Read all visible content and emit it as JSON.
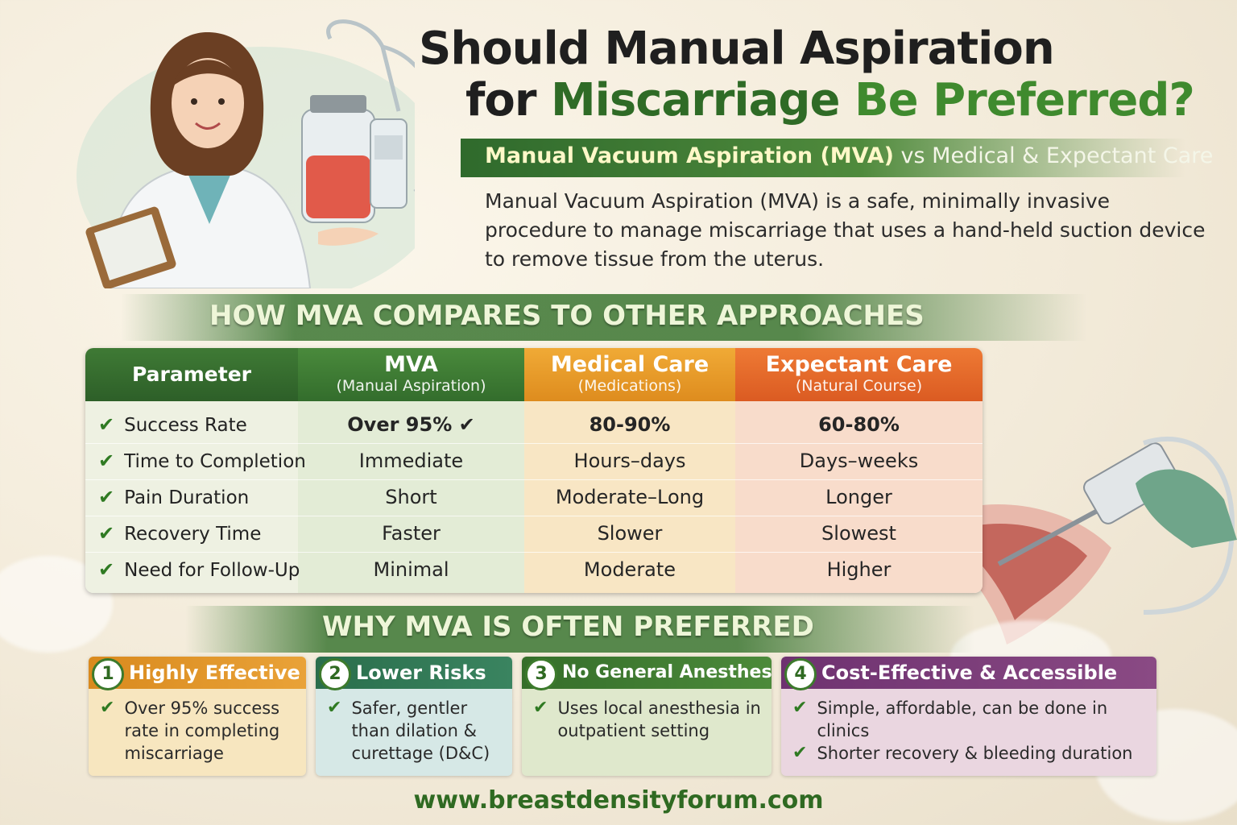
{
  "title": {
    "line1": "Should Manual Aspiration",
    "line2_a": "for ",
    "line2_b": "Miscarriage",
    "line2_c": " Be Preferred?"
  },
  "subtitle": {
    "bold": "Manual Vacuum Aspiration (MVA)",
    "rest": " vs Medical & Expectant Care"
  },
  "intro": "Manual Vacuum Aspiration (MVA) is a safe, minimally invasive procedure to manage miscarriage that uses a hand-held suction device to remove tissue from the uterus.",
  "comparison": {
    "heading": "HOW MVA COMPARES TO OTHER APPROACHES",
    "columns": [
      {
        "title": "Parameter",
        "subtitle": ""
      },
      {
        "title": "MVA",
        "subtitle": "(Manual Aspiration)"
      },
      {
        "title": "Medical Care",
        "subtitle": "(Medications)"
      },
      {
        "title": "Expectant Care",
        "subtitle": "(Natural Course)"
      }
    ],
    "rows": [
      {
        "param": "Success Rate",
        "mva": "Over 95% ✔",
        "medical": "80-90%",
        "expectant": "60-80%"
      },
      {
        "param": "Time to Completion",
        "mva": "Immediate",
        "medical": "Hours–days",
        "expectant": "Days–weeks"
      },
      {
        "param": "Pain Duration",
        "mva": "Short",
        "medical": "Moderate–Long",
        "expectant": "Longer"
      },
      {
        "param": "Recovery Time",
        "mva": "Faster",
        "medical": "Slower",
        "expectant": "Slowest"
      },
      {
        "param": "Need for Follow-Up",
        "mva": "Minimal",
        "medical": "Moderate",
        "expectant": "Higher"
      }
    ]
  },
  "why": {
    "heading": "WHY MVA IS OFTEN PREFERRED",
    "cards": [
      {
        "num": "1",
        "title": "Highly Effective",
        "points": [
          "Over 95% success rate in completing miscarriage"
        ]
      },
      {
        "num": "2",
        "title": "Lower Risks",
        "points": [
          "Safer, gentler than dilation & curettage (D&C)"
        ]
      },
      {
        "num": "3",
        "title": "No General Anesthesia",
        "points": [
          "Uses local anesthesia in outpatient setting"
        ]
      },
      {
        "num": "4",
        "title": "Cost-Effective & Accessible",
        "points": [
          "Simple, affordable, can be done in clinics",
          "Shorter recovery & bleeding duration"
        ]
      }
    ]
  },
  "footer": "www.breastdensityforum.com",
  "icons": {
    "check": "check-icon"
  },
  "colors": {
    "green_dark": "#2f6a22",
    "mva_header": "#3d7a34",
    "medical_header": "#e89a2a",
    "expectant_header": "#e2652a",
    "card1": "#d98a1e",
    "card2": "#2f7a54",
    "card3": "#3e7a30",
    "card4": "#7a3a78"
  }
}
